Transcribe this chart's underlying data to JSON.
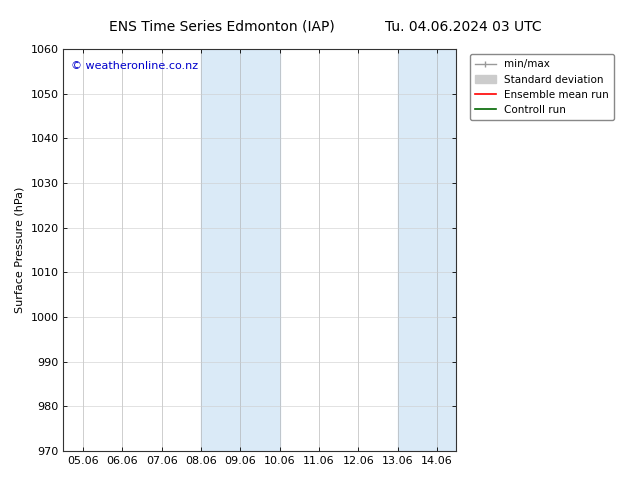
{
  "title_left": "ENS Time Series Edmonton (IAP)",
  "title_right": "Tu. 04.06.2024 03 UTC",
  "ylabel": "Surface Pressure (hPa)",
  "ylim": [
    970,
    1060
  ],
  "yticks": [
    970,
    980,
    990,
    1000,
    1010,
    1020,
    1030,
    1040,
    1050,
    1060
  ],
  "xtick_labels": [
    "05.06",
    "06.06",
    "07.06",
    "08.06",
    "09.06",
    "10.06",
    "11.06",
    "12.06",
    "13.06",
    "14.06"
  ],
  "x_values": [
    0,
    1,
    2,
    3,
    4,
    5,
    6,
    7,
    8,
    9
  ],
  "xlim": [
    -0.5,
    9.5
  ],
  "shaded_regions": [
    {
      "x_start": 3.0,
      "x_end": 4.0,
      "color": "#daeaf7"
    },
    {
      "x_start": 4.5,
      "x_end": 5.0,
      "color": "#daeaf7"
    },
    {
      "x_start": 8.0,
      "x_end": 8.5,
      "color": "#daeaf7"
    },
    {
      "x_start": 8.7,
      "x_end": 9.5,
      "color": "#daeaf7"
    }
  ],
  "watermark_text": "© weatheronline.co.nz",
  "watermark_color": "#0000cc",
  "background_color": "#ffffff",
  "legend_entries": [
    {
      "label": "min/max",
      "color": "#999999",
      "linestyle": "-",
      "linewidth": 1.0
    },
    {
      "label": "Standard deviation",
      "color": "#cccccc",
      "linestyle": "-",
      "linewidth": 5
    },
    {
      "label": "Ensemble mean run",
      "color": "#ff0000",
      "linestyle": "-",
      "linewidth": 1.2
    },
    {
      "label": "Controll run",
      "color": "#006600",
      "linestyle": "-",
      "linewidth": 1.2
    }
  ],
  "title_fontsize": 10,
  "axis_fontsize": 8,
  "tick_fontsize": 8,
  "legend_fontsize": 7.5
}
